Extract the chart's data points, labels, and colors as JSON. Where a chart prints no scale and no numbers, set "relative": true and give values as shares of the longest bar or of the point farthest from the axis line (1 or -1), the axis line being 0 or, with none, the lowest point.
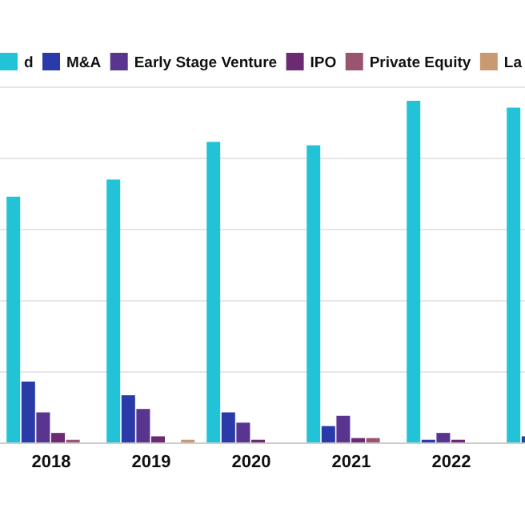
{
  "chart_data": {
    "type": "bar",
    "relative": true,
    "categories": [
      "2018",
      "2019",
      "2020",
      "2021",
      "2022",
      null
    ],
    "series": [
      {
        "name": "d",
        "color": "#22c3d6",
        "values": [
          0.72,
          0.77,
          0.88,
          0.87,
          1,
          0.98
        ]
      },
      {
        "name": "M&A",
        "color": "#2a3aa8",
        "values": [
          0.18,
          0.14,
          0.09,
          0.05,
          0.01,
          0.02
        ]
      },
      {
        "name": "Early Stage Venture",
        "color": "#5a3590",
        "values": [
          0.09,
          0.1,
          0.06,
          0.08,
          0.03,
          null
        ]
      },
      {
        "name": "IPO",
        "color": "#6b2a72",
        "values": [
          0.03,
          0.02,
          0.01,
          0.015,
          0.01,
          null
        ]
      },
      {
        "name": "Private Equity",
        "color": "#9a5470",
        "values": [
          0.01,
          null,
          null,
          0.015,
          null,
          null
        ]
      },
      {
        "name": "La",
        "color": "#c99a72",
        "values": [
          null,
          0.01,
          null,
          null,
          null,
          null
        ]
      }
    ],
    "grid": "y",
    "legend": "top"
  }
}
